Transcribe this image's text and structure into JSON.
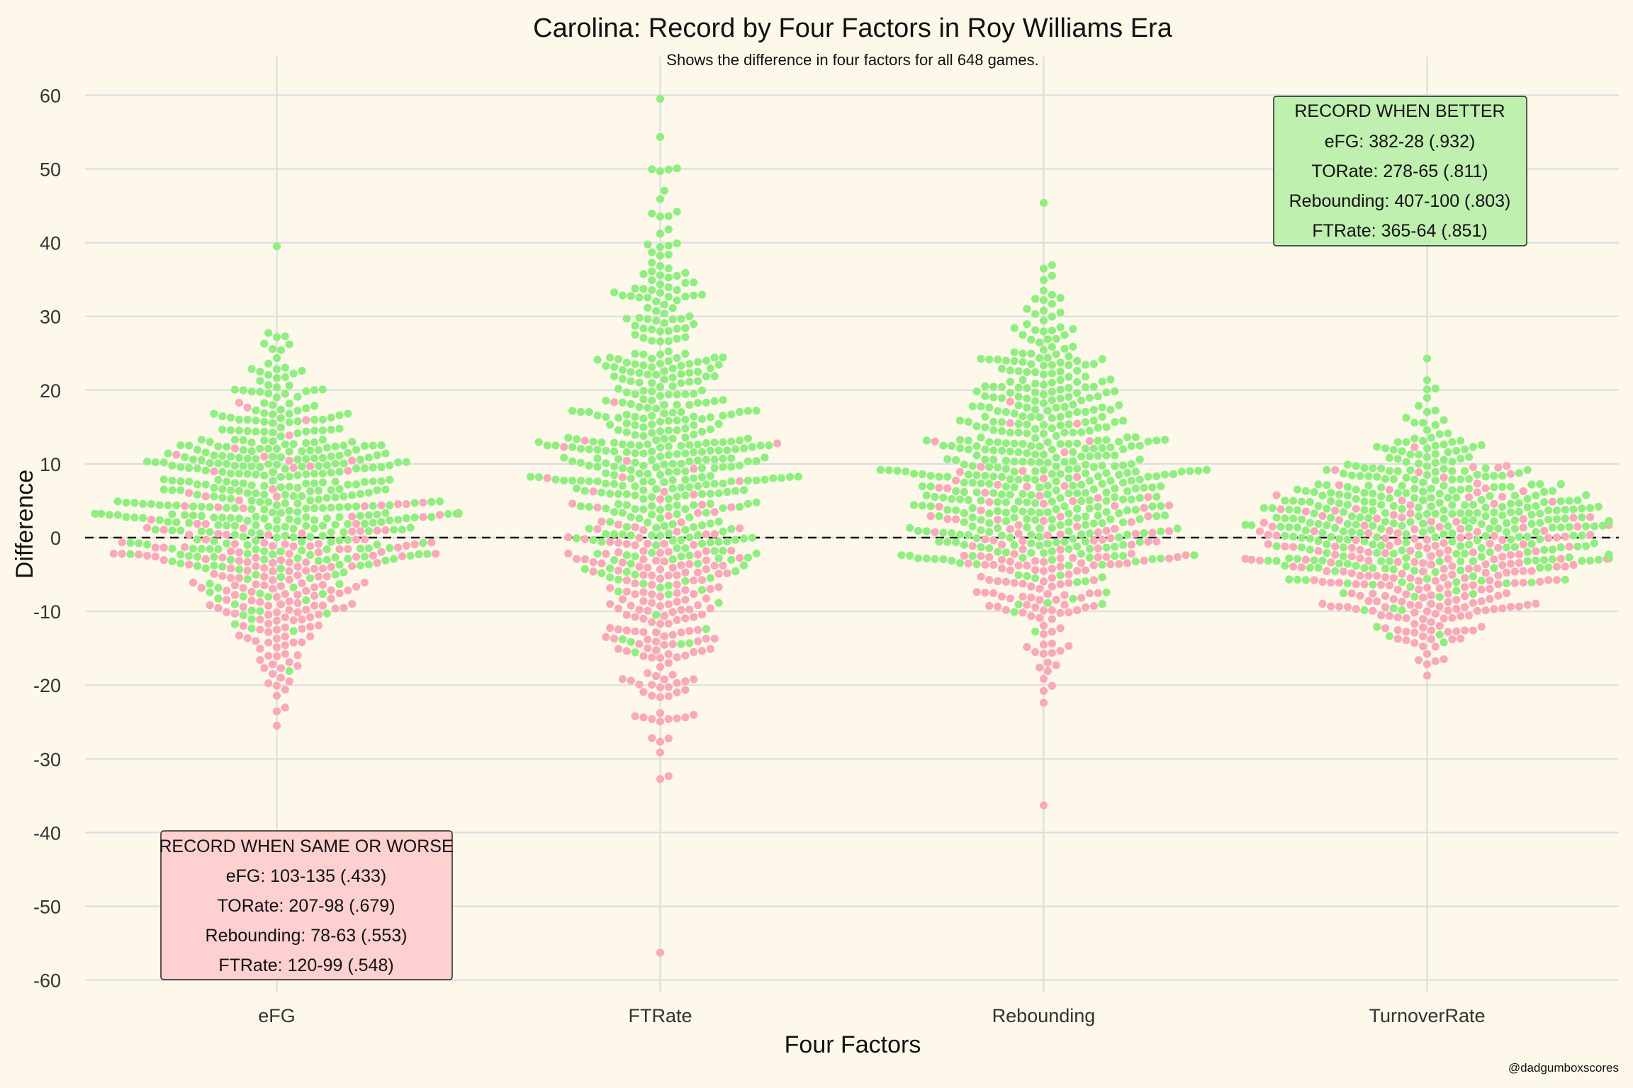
{
  "chart_data": {
    "type": "scatter",
    "subtype": "beeswarm",
    "title": "Carolina: Record by Four Factors in Roy Williams Era",
    "subtitle": "Shows the difference in four factors for all 648 games.",
    "xlabel": "Four Factors",
    "ylabel": "Difference",
    "categories": [
      "eFG",
      "FTRate",
      "Rebounding",
      "TurnoverRate"
    ],
    "ylim": [
      -65,
      65
    ],
    "yticks": [
      60,
      50,
      40,
      30,
      20,
      10,
      0,
      -10,
      -20,
      -30,
      -40,
      -50,
      -60
    ],
    "reference_line": 0,
    "grid": true,
    "colors": {
      "win": "#90ee80",
      "loss": "#f9a9b8",
      "background": "#fdf8ea"
    },
    "distribution": [
      {
        "category": "eFG",
        "min": -25.5,
        "max": 39.5,
        "center": 3,
        "spread": 10
      },
      {
        "category": "FTRate",
        "min": -56.3,
        "max": 59.5,
        "center": 8,
        "spread": 15
      },
      {
        "category": "Rebounding",
        "min": -36.3,
        "max": 45.4,
        "center": 7,
        "spread": 11
      },
      {
        "category": "TurnoverRate",
        "min": -18.7,
        "max": 24.3,
        "center": 0,
        "spread": 7
      }
    ],
    "annotations": {
      "better": {
        "heading": "RECORD WHEN BETTER",
        "lines": [
          "eFG: 382-28 (.932)",
          "TORate: 278-65 (.811)",
          "Rebounding: 407-100 (.803)",
          "FTRate: 365-64 (.851)"
        ],
        "color": "#c0f0b0"
      },
      "worse": {
        "heading": "RECORD WHEN SAME OR WORSE",
        "lines": [
          "eFG: 103-135 (.433)",
          "TORate: 207-98 (.679)",
          "Rebounding: 78-63 (.553)",
          "FTRate: 120-99 (.548)"
        ],
        "color": "#ffd0d0"
      }
    },
    "caption": "@dadgumboxscores"
  }
}
